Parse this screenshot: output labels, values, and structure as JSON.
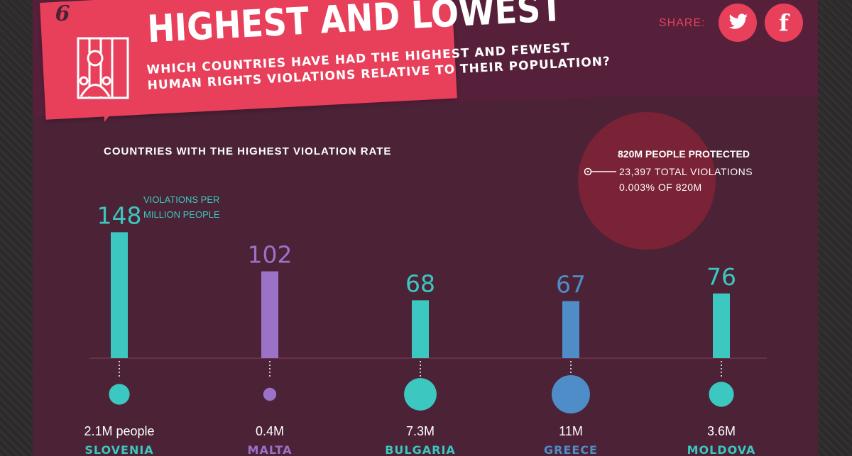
{
  "header": {
    "badge_number": "6",
    "title": "HIGHEST AND LOWEST",
    "subtitle": "WHICH COUNTRIES HAVE HAD THE HIGHEST AND FEWEST HUMAN RIGHTS VIOLATIONS RELATIVE TO THEIR POPULATION?",
    "share_label": "SHARE:",
    "twitter_icon": "twitter-icon",
    "facebook_icon": "f"
  },
  "callout": {
    "bold": "820M PEOPLE PROTECTED",
    "line1": "23,397 TOTAL VIOLATIONS",
    "line2": "0.003% OF 820M"
  },
  "colors": {
    "accent": "#e8405b",
    "teal": "#3cc7c0",
    "purple": "#9b72c8",
    "blue": "#4f8dc9",
    "background": "#4b2236"
  },
  "chart_data": {
    "type": "bar",
    "title": "COUNTRIES WITH THE HIGHEST VIOLATION RATE",
    "unit_note": "VIOLATIONS PER MILLION PEOPLE",
    "categories": [
      "SLOVENIA",
      "MALTA",
      "BULGARIA",
      "GREECE",
      "MOLDOVA"
    ],
    "values": [
      148,
      102,
      68,
      67,
      76
    ],
    "value_labels": [
      "148",
      "102",
      "68",
      "67",
      "76"
    ],
    "population_labels": [
      "2.1M people",
      "0.4M",
      "7.3M",
      "11M",
      "3.6M"
    ],
    "population_millions": [
      2.1,
      0.4,
      7.3,
      11,
      3.6
    ],
    "bar_colors": [
      "#3cc7c0",
      "#9b72c8",
      "#3cc7c0",
      "#4f8dc9",
      "#3cc7c0"
    ],
    "ylim": [
      0,
      160
    ]
  }
}
